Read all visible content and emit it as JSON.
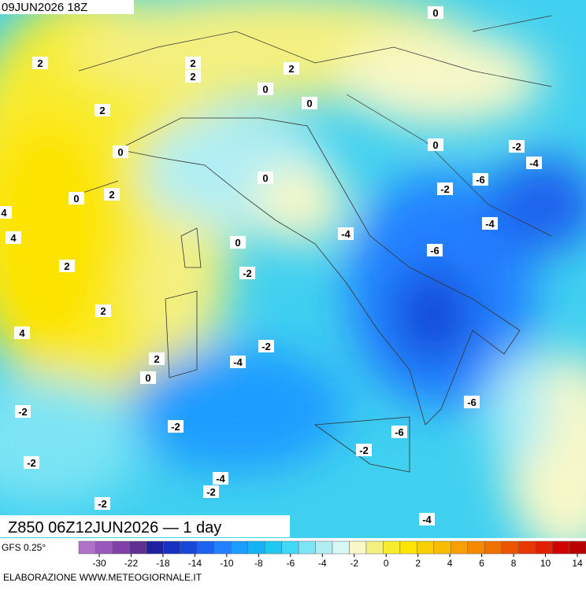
{
  "header": {
    "run": "09JUN2026 18Z"
  },
  "map": {
    "contour_labels": [
      "0",
      "2",
      "2",
      "2",
      "2",
      "0",
      "0",
      "2",
      "0",
      "0",
      "-2",
      "-4",
      "-6",
      "-2",
      "0",
      "2",
      "0",
      "4",
      "-4",
      "4",
      "-4",
      "0",
      "-6",
      "2",
      "-2",
      "2",
      "4",
      "-2",
      "-4",
      "2",
      "0",
      "-6",
      "-2",
      "-2",
      "-6",
      "-2",
      "-2",
      "-4",
      "-2",
      "-2",
      "-4"
    ]
  },
  "footer": {
    "title": "Z850 06Z12JUN2026 — 1 day",
    "model": "GFS 0.25°",
    "credit": "ELABORAZIONE  WWW.METEOGIORNALE.IT"
  },
  "colorbar": {
    "ticks": [
      -30,
      -22,
      -18,
      -14,
      -10,
      -8,
      -6,
      -4,
      -2,
      0,
      2,
      4,
      6,
      8,
      10,
      14
    ],
    "colors": [
      "#b070c8",
      "#9a58bc",
      "#8040a8",
      "#603090",
      "#2020a0",
      "#1830c0",
      "#1848d8",
      "#1c62ee",
      "#2080ff",
      "#1c9cff",
      "#14b4f4",
      "#20c8f0",
      "#40d8f4",
      "#7ce4f4",
      "#b0eef4",
      "#d8f6f4",
      "#f8f8c8",
      "#f4f080",
      "#f8ec30",
      "#fce400",
      "#f8d000",
      "#f8bc00",
      "#f8a000",
      "#f48800",
      "#f07000",
      "#ec5400",
      "#e83800",
      "#e02000",
      "#d00000",
      "#b80000"
    ]
  }
}
